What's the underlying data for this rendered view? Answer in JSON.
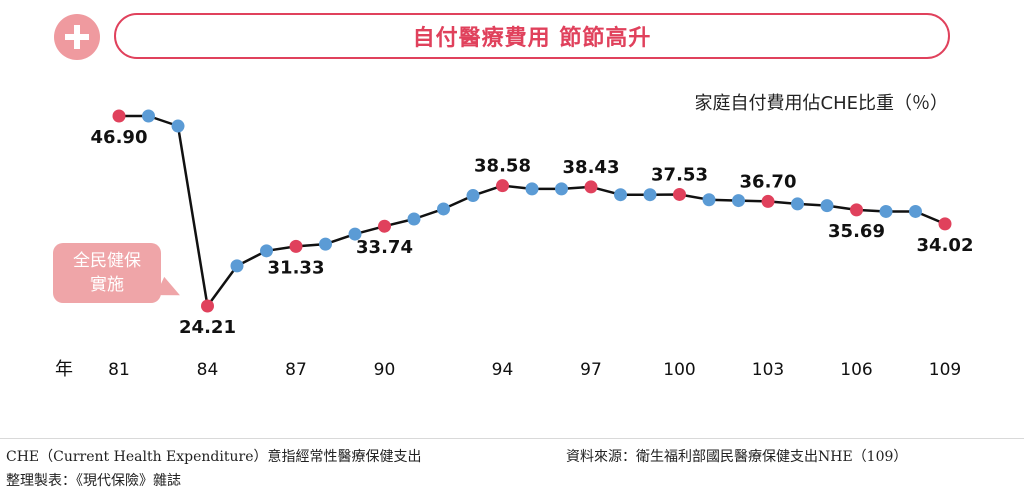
{
  "header": {
    "title": "自付醫療費用 節節高升",
    "badge_icon": "plus-icon"
  },
  "callout": {
    "line1": "全民健保",
    "line2": "實施"
  },
  "chart_data": {
    "type": "line",
    "title": "",
    "subtitle": "家庭自付費用佔CHE比重（％）",
    "xlabel": "年",
    "ylabel": "",
    "x": [
      81,
      82,
      83,
      84,
      85,
      86,
      87,
      88,
      89,
      90,
      91,
      92,
      93,
      94,
      95,
      96,
      97,
      98,
      99,
      100,
      101,
      102,
      103,
      104,
      105,
      106,
      107,
      108,
      109
    ],
    "x_ticks": [
      81,
      84,
      87,
      90,
      94,
      97,
      100,
      103,
      106,
      109
    ],
    "series": [
      {
        "name": "",
        "values": [
          46.9,
          46.9,
          45.7,
          24.21,
          29.0,
          30.8,
          31.33,
          31.6,
          32.8,
          33.74,
          34.6,
          35.8,
          37.4,
          38.58,
          38.2,
          38.2,
          38.43,
          37.5,
          37.5,
          37.53,
          36.9,
          36.8,
          36.7,
          36.4,
          36.2,
          35.69,
          35.5,
          35.5,
          34.02
        ]
      }
    ],
    "highlighted_x": [
      81,
      84,
      87,
      90,
      94,
      97,
      100,
      103,
      106,
      109
    ],
    "labels": [
      {
        "x": 81,
        "text": "46.90",
        "pos": "below"
      },
      {
        "x": 84,
        "text": "24.21",
        "pos": "below"
      },
      {
        "x": 87,
        "text": "31.33",
        "pos": "below"
      },
      {
        "x": 90,
        "text": "33.74",
        "pos": "below"
      },
      {
        "x": 94,
        "text": "38.58",
        "pos": "above"
      },
      {
        "x": 97,
        "text": "38.43",
        "pos": "above"
      },
      {
        "x": 100,
        "text": "37.53",
        "pos": "above"
      },
      {
        "x": 103,
        "text": "36.70",
        "pos": "above"
      },
      {
        "x": 106,
        "text": "35.69",
        "pos": "below"
      },
      {
        "x": 109,
        "text": "34.02",
        "pos": "below"
      }
    ],
    "ylim": [
      20,
      50
    ],
    "grid": false,
    "colors": {
      "line": "#111111",
      "highlight": "#e0415c",
      "normal": "#5b9bd5"
    }
  },
  "footer": {
    "note": "CHE（Current Health Expenditure）意指經常性醫療保健支出",
    "source": "資料來源：衛生福利部國民醫療保健支出NHE（109）",
    "maker": "整理製表：《現代保險》雜誌"
  }
}
